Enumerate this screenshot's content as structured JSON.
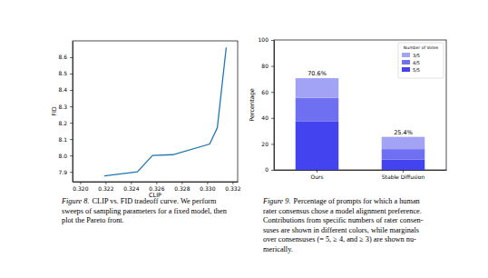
{
  "chart_data": [
    {
      "type": "line",
      "x_label": "CLIP",
      "y_label": "FID",
      "x": [
        0.3219,
        0.3245,
        0.3257,
        0.3273,
        0.3302,
        0.3308,
        0.3315
      ],
      "values": [
        7.875,
        7.9,
        8.0,
        8.005,
        8.07,
        8.17,
        8.66
      ],
      "color": "#1f77b4",
      "xlim": [
        0.3194,
        0.3324
      ],
      "xticks": [
        {
          "value": 0.32,
          "label": "0.320"
        },
        {
          "value": 0.322,
          "label": "0.322"
        },
        {
          "value": 0.324,
          "label": "0.324"
        },
        {
          "value": 0.326,
          "label": "0.326"
        },
        {
          "value": 0.328,
          "label": "0.328"
        },
        {
          "value": 0.33,
          "label": "0.330"
        },
        {
          "value": 0.332,
          "label": "0.332"
        }
      ],
      "ylim": [
        7.84,
        8.7
      ],
      "yticks": [
        7.9,
        {
          "value": 8,
          "label": "8.0"
        },
        8.1,
        8.2,
        8.3,
        8.4,
        8.5,
        8.6
      ],
      "caption_label": "Figure 8.",
      "caption": [
        "CLIP vs. FID tradeoff curve. We perform",
        "sweeps of sampling parameters for a fixed model, then",
        "plot the Pareto front."
      ]
    },
    {
      "type": "bar",
      "stacked": true,
      "y_label": "Percentage",
      "categories": [
        "Ours",
        "Stable Diffusion"
      ],
      "series": [
        {
          "name": "5/5",
          "color": "#4343f0",
          "values": [
            37.5,
            7.9
          ]
        },
        {
          "name": "4/5",
          "color": "#6f6ff2",
          "values": [
            18.0,
            8.1
          ]
        },
        {
          "name": "3/5",
          "color": "#a3a3f6",
          "values": [
            15.1,
            9.4
          ]
        }
      ],
      "ylim": [
        0,
        100
      ],
      "yticks": [
        0,
        20,
        40,
        60,
        80,
        100
      ],
      "legend": "upper right",
      "legend_title": "Number of Votes",
      "annotations": [
        {
          "text": "70.6%",
          "category": "Ours",
          "value": 70.6
        },
        {
          "text": "25.4%",
          "category": "Stable Diffusion",
          "value": 25.4
        }
      ],
      "caption_label": "Figure 9.",
      "caption": [
        "Percentage of prompts for which a human",
        "rater consensus chose a model alignment preference.",
        "Contributions from specific numbers of rater consen-",
        "suses are shown in different colors, while marginals",
        "over consensuses (= 5, ≥ 4, and ≥ 3) are shown nu-",
        "merically."
      ]
    }
  ]
}
